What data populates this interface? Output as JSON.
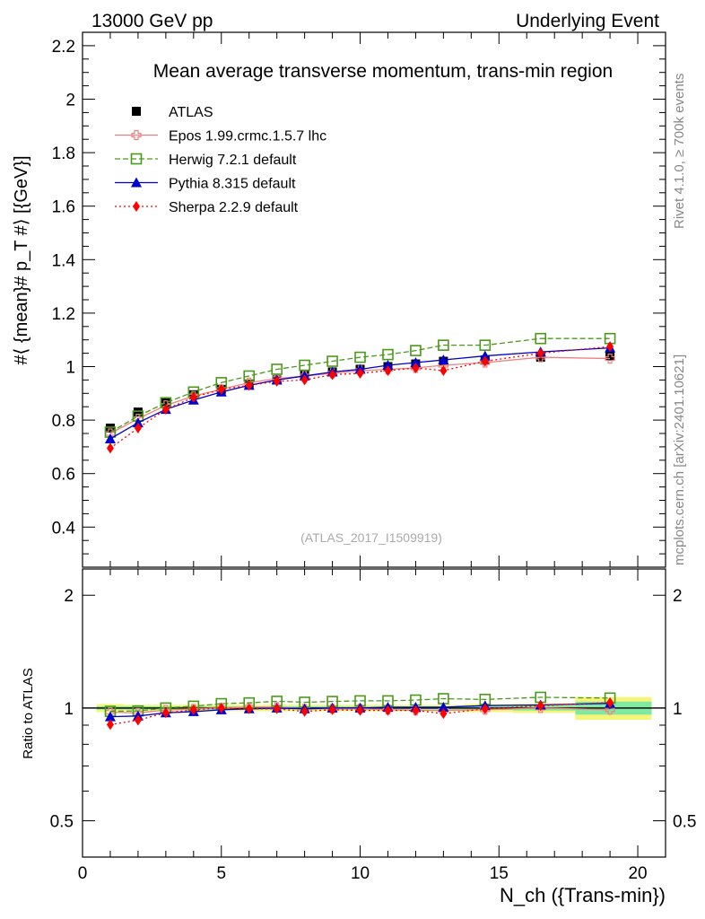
{
  "header": {
    "left": "13000 GeV pp",
    "right": "Underlying Event"
  },
  "side_text": {
    "rivet": "Rivet 4.1.0, ≥ 700k events",
    "mcplots": "mcplots.cern.ch [arXiv:2401.10621]"
  },
  "colors": {
    "ATLAS": "#000000",
    "Epos": "#f08080",
    "Herwig": "#4a9a1a",
    "Pythia": "#0000cc",
    "Sherpa": "#ff0000",
    "band_outer": "#f5f57a",
    "band_inner": "#80e8a0"
  },
  "chart_data": [
    {
      "type": "line",
      "title": "Mean average transverse momentum, trans-min region",
      "ylabel": "#⟨ {mean}# p_T #⟩ [{GeV}]",
      "xlabel": "",
      "watermark": "(ATLAS_2017_I1509919)",
      "xlim": [
        0,
        21
      ],
      "ylim": [
        0.25,
        2.25
      ],
      "x_ticks": [
        "0",
        "5",
        "10",
        "15",
        "20"
      ],
      "y_ticks": [
        "0.4",
        "0.6",
        "0.8",
        "1",
        "1.2",
        "1.4",
        "1.6",
        "1.8",
        "2",
        "2.2"
      ],
      "legend": [
        "ATLAS",
        "Epos 1.99.crmc.1.5.7 lhc",
        "Herwig 7.2.1 default",
        "Pythia 8.315 default",
        "Sherpa 2.2.9 default"
      ],
      "x": [
        1,
        2,
        3,
        4,
        5,
        6,
        7,
        8,
        9,
        10,
        11,
        12,
        13,
        14.5,
        16.5,
        19
      ],
      "series": [
        {
          "name": "ATLAS",
          "values": [
            0.77,
            0.83,
            0.865,
            0.895,
            0.915,
            0.935,
            0.95,
            0.97,
            0.98,
            0.99,
            1.0,
            1.01,
            1.02,
            1.025,
            1.035,
            1.04
          ]
        },
        {
          "name": "Epos 1.99.crmc.1.5.7 lhc",
          "values": [
            0.75,
            0.805,
            0.855,
            0.89,
            0.915,
            0.94,
            0.955,
            0.965,
            0.975,
            0.985,
            0.99,
            0.995,
            1.005,
            1.015,
            1.035,
            1.03
          ]
        },
        {
          "name": "Herwig 7.2.1 default",
          "values": [
            0.755,
            0.815,
            0.865,
            0.905,
            0.94,
            0.965,
            0.99,
            1.005,
            1.02,
            1.035,
            1.045,
            1.06,
            1.08,
            1.08,
            1.105,
            1.105
          ]
        },
        {
          "name": "Pythia 8.315 default",
          "values": [
            0.73,
            0.79,
            0.84,
            0.875,
            0.905,
            0.93,
            0.95,
            0.965,
            0.98,
            0.99,
            1.005,
            1.015,
            1.025,
            1.04,
            1.055,
            1.07
          ]
        },
        {
          "name": "Sherpa 2.2.9 default",
          "values": [
            0.695,
            0.77,
            0.84,
            0.885,
            0.915,
            0.93,
            0.945,
            0.95,
            0.97,
            0.975,
            0.985,
            0.995,
            0.985,
            1.02,
            1.05,
            1.075
          ]
        }
      ]
    },
    {
      "type": "line",
      "title": "",
      "ylabel": "Ratio to ATLAS",
      "xlabel": "N_ch ({Trans-min})",
      "xlim": [
        0,
        21
      ],
      "ylim": [
        0.4,
        2.35
      ],
      "yscale": "log",
      "x_ticks": [
        "0",
        "5",
        "10",
        "15",
        "20"
      ],
      "y_ticks": [
        "0.5",
        "1",
        "2"
      ],
      "x": [
        1,
        2,
        3,
        4,
        5,
        6,
        7,
        8,
        9,
        10,
        11,
        12,
        13,
        14.5,
        16.5,
        19
      ],
      "band_outer": [
        0.025,
        0.02,
        0.02,
        0.02,
        0.02,
        0.02,
        0.02,
        0.02,
        0.02,
        0.02,
        0.02,
        0.02,
        0.02,
        0.025,
        0.03,
        0.07
      ],
      "band_inner": [
        0.01,
        0.01,
        0.01,
        0.01,
        0.01,
        0.01,
        0.01,
        0.01,
        0.01,
        0.01,
        0.01,
        0.01,
        0.01,
        0.012,
        0.015,
        0.04
      ],
      "series": [
        {
          "name": "Epos 1.99.crmc.1.5.7 lhc",
          "values": [
            0.975,
            0.97,
            0.988,
            0.995,
            1.0,
            1.005,
            1.005,
            0.995,
            0.995,
            0.995,
            0.99,
            0.985,
            0.985,
            0.99,
            1.0,
            0.99
          ]
        },
        {
          "name": "Herwig 7.2.1 default",
          "values": [
            0.98,
            0.982,
            1.0,
            1.011,
            1.027,
            1.032,
            1.042,
            1.036,
            1.041,
            1.045,
            1.045,
            1.05,
            1.059,
            1.054,
            1.068,
            1.063
          ]
        },
        {
          "name": "Pythia 8.315 default",
          "values": [
            0.948,
            0.952,
            0.971,
            0.978,
            0.989,
            0.995,
            1.0,
            0.995,
            1.0,
            1.0,
            1.005,
            1.005,
            1.005,
            1.015,
            1.019,
            1.029
          ]
        },
        {
          "name": "Sherpa 2.2.9 default",
          "values": [
            0.903,
            0.928,
            0.971,
            0.989,
            1.0,
            0.995,
            0.995,
            0.979,
            0.99,
            0.985,
            0.985,
            0.985,
            0.966,
            0.995,
            1.014,
            1.034
          ]
        }
      ]
    }
  ]
}
